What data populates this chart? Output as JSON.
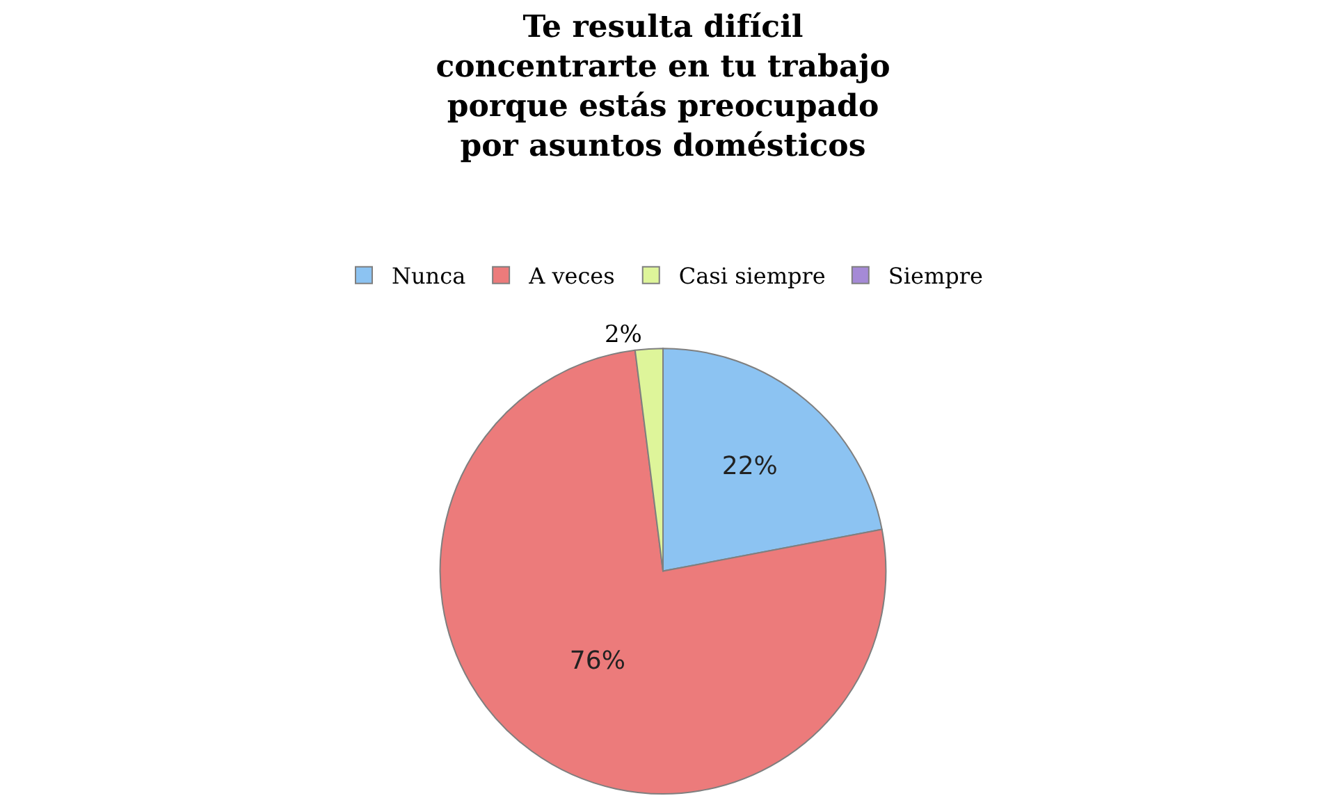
{
  "chart_data": {
    "type": "pie",
    "title": "Te resulta difícil\nconcentrarte en tu trabajo\nporque estás preocupado\npor asuntos domésticos",
    "categories": [
      "Nunca",
      "A veces",
      "Casi siempre",
      "Siempre"
    ],
    "values": [
      22,
      76,
      2,
      0
    ],
    "colors": [
      "#8cc3f2",
      "#ec7b7b",
      "#def59a",
      "#a58ad6"
    ],
    "value_labels": [
      "22%",
      "76%",
      "2%",
      null
    ],
    "legend": "top"
  }
}
